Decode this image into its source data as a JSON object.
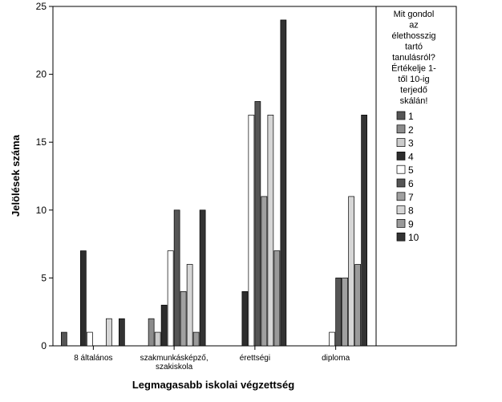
{
  "chart_data": {
    "type": "bar",
    "title": "",
    "xlabel": "Legmagasabb iskolai végzettség",
    "ylabel": "Jelölések száma",
    "ylim": [
      0,
      25
    ],
    "yticks": [
      0,
      5,
      10,
      15,
      20,
      25
    ],
    "grid": false,
    "legend_position": "right",
    "legend_title_lines": [
      "Mit gondol",
      "az",
      "élethosszig",
      "tartó",
      "tanulásról?",
      "Értékelje 1-",
      "től 10-ig",
      "terjedő",
      "skálán!"
    ],
    "categories": [
      {
        "lines": [
          "8 általános"
        ]
      },
      {
        "lines": [
          "szakmunkásképző,",
          "szakiskola"
        ]
      },
      {
        "lines": [
          "érettségi"
        ]
      },
      {
        "lines": [
          "diploma"
        ]
      }
    ],
    "series": [
      {
        "name": "1",
        "color": "#555555",
        "values": [
          1,
          0,
          0,
          0
        ]
      },
      {
        "name": "2",
        "color": "#8c8c8c",
        "values": [
          0,
          2,
          0,
          0
        ]
      },
      {
        "name": "3",
        "color": "#cccccc",
        "values": [
          0,
          1,
          0,
          0
        ]
      },
      {
        "name": "4",
        "color": "#2d2d2d",
        "values": [
          7,
          3,
          4,
          0
        ]
      },
      {
        "name": "5",
        "color": "#ffffff",
        "values": [
          1,
          7,
          17,
          1
        ]
      },
      {
        "name": "6",
        "color": "#555555",
        "values": [
          0,
          10,
          18,
          5
        ]
      },
      {
        "name": "7",
        "color": "#a0a0a0",
        "values": [
          0,
          4,
          11,
          5
        ]
      },
      {
        "name": "8",
        "color": "#d6d6d6",
        "values": [
          2,
          6,
          17,
          11
        ]
      },
      {
        "name": "9",
        "color": "#9a9a9a",
        "values": [
          0,
          1,
          7,
          6
        ]
      },
      {
        "name": "10",
        "color": "#333333",
        "values": [
          2,
          10,
          24,
          17
        ]
      }
    ]
  }
}
